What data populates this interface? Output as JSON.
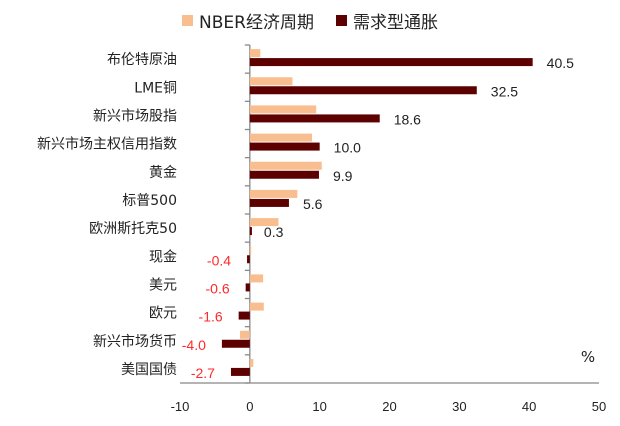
{
  "chart_data": {
    "type": "bar",
    "orientation": "horizontal",
    "title": "",
    "xlabel": "%",
    "ylabel": "",
    "xlim": [
      -10,
      50
    ],
    "xticks": [
      -10,
      0,
      10,
      20,
      30,
      40,
      50
    ],
    "legend_position": "top",
    "categories": [
      "布伦特原油",
      "LME铜",
      "新兴市场股指",
      "新兴市场主权信用指数",
      "黄金",
      "标普500",
      "欧洲斯托克50",
      "现金",
      "美元",
      "欧元",
      "新兴市场货币",
      "美国国债"
    ],
    "series": [
      {
        "name": "NBER经济周期",
        "color": "#F9BE8F",
        "values": [
          1.5,
          6.1,
          9.5,
          8.9,
          10.3,
          6.8,
          4.1,
          0.2,
          1.9,
          2.0,
          -1.4,
          0.5
        ]
      },
      {
        "name": "需求型通胀",
        "color": "#5C0000",
        "values": [
          40.5,
          32.5,
          18.6,
          10.0,
          9.9,
          5.6,
          0.3,
          -0.4,
          -0.6,
          -1.6,
          -4.0,
          -2.7
        ],
        "labels": [
          "40.5",
          "32.5",
          "18.6",
          "10.0",
          "9.9",
          "5.6",
          "0.3",
          "-0.4",
          "-0.6",
          "-1.6",
          "-4.0",
          "-2.7"
        ]
      }
    ],
    "label_colors": {
      "positive": "#222222",
      "negative": "#FF2A2A"
    }
  }
}
